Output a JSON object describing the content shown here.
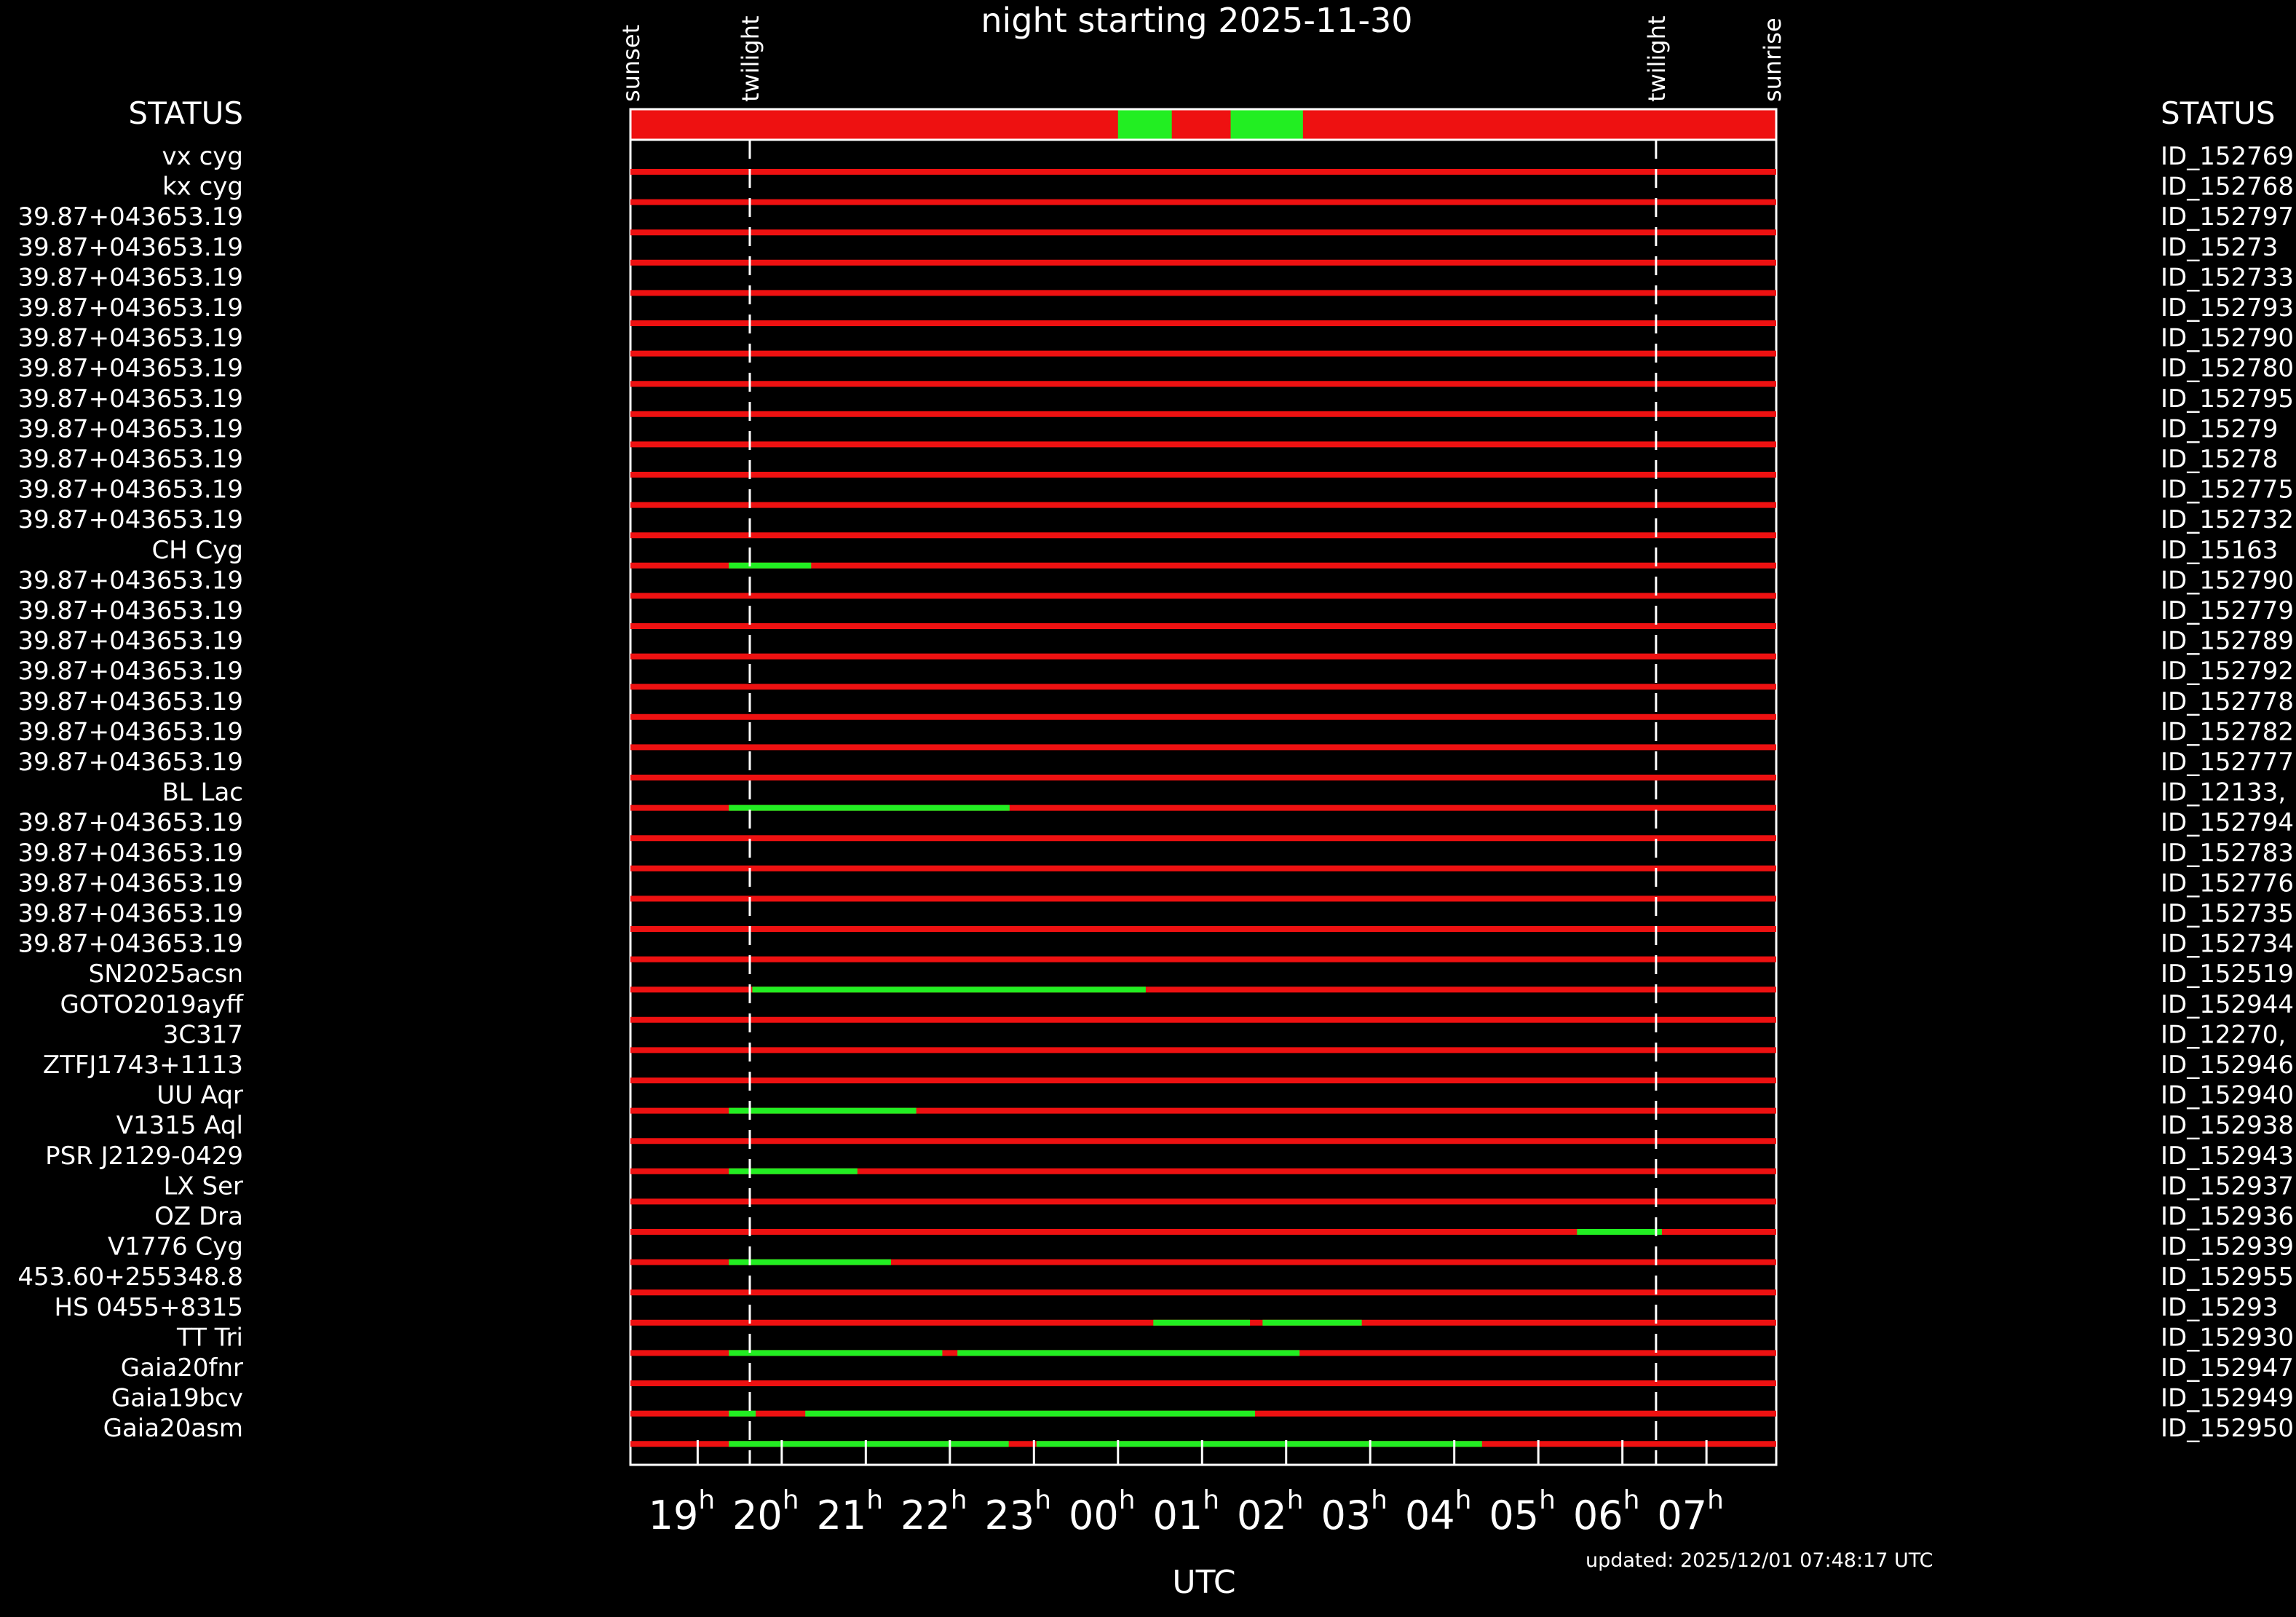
{
  "chart_data": {
    "type": "timeline",
    "title": "night starting 2025-11-30",
    "status_label": "STATUS",
    "xlabel": "UTC",
    "updated": "updated: 2025/12/01 07:48:17 UTC",
    "xlim": [
      18.2,
      31.83
    ],
    "xticks": [
      {
        "value": 19,
        "label": "19"
      },
      {
        "value": 20,
        "label": "20"
      },
      {
        "value": 21,
        "label": "21"
      },
      {
        "value": 22,
        "label": "22"
      },
      {
        "value": 23,
        "label": "23"
      },
      {
        "value": 24,
        "label": "00"
      },
      {
        "value": 25,
        "label": "01"
      },
      {
        "value": 26,
        "label": "02"
      },
      {
        "value": 27,
        "label": "03"
      },
      {
        "value": 28,
        "label": "04"
      },
      {
        "value": 29,
        "label": "05"
      },
      {
        "value": 30,
        "label": "06"
      },
      {
        "value": 31,
        "label": "07"
      }
    ],
    "xtick_suffix": "h",
    "events": [
      {
        "name": "sunset",
        "x": 18.2,
        "line": false
      },
      {
        "name": "twilight",
        "x": 19.62,
        "line": true
      },
      {
        "name": "twilight",
        "x": 30.4,
        "line": true
      },
      {
        "name": "sunrise",
        "x": 31.78,
        "line": false
      }
    ],
    "status_bar_open": [
      [
        24.0,
        24.64
      ],
      [
        25.34,
        26.2
      ]
    ],
    "bad_color": "#ee1111",
    "good_color": "#22ee22",
    "rows": [
      {
        "name": "vx cyg",
        "id": "ID_152769",
        "segments": []
      },
      {
        "name": "kx cyg",
        "id": "ID_152768",
        "segments": []
      },
      {
        "name": "39.87+043653.19",
        "id": "ID_152797",
        "segments": []
      },
      {
        "name": "39.87+043653.19",
        "id": "ID_15273",
        "segments": []
      },
      {
        "name": "39.87+043653.19",
        "id": "ID_152733",
        "segments": []
      },
      {
        "name": "39.87+043653.19",
        "id": "ID_152793",
        "segments": []
      },
      {
        "name": "39.87+043653.19",
        "id": "ID_152790",
        "segments": []
      },
      {
        "name": "39.87+043653.19",
        "id": "ID_152780",
        "segments": []
      },
      {
        "name": "39.87+043653.19",
        "id": "ID_152795",
        "segments": []
      },
      {
        "name": "39.87+043653.19",
        "id": "ID_15279",
        "segments": []
      },
      {
        "name": "39.87+043653.19",
        "id": "ID_15278",
        "segments": []
      },
      {
        "name": "39.87+043653.19",
        "id": "ID_152775",
        "segments": []
      },
      {
        "name": "39.87+043653.19",
        "id": "ID_152732",
        "segments": []
      },
      {
        "name": "CH Cyg",
        "id": "ID_15163",
        "segments": [
          [
            19.37,
            20.35
          ]
        ]
      },
      {
        "name": "39.87+043653.19",
        "id": "ID_152790",
        "segments": []
      },
      {
        "name": "39.87+043653.19",
        "id": "ID_152779",
        "segments": []
      },
      {
        "name": "39.87+043653.19",
        "id": "ID_152789",
        "segments": []
      },
      {
        "name": "39.87+043653.19",
        "id": "ID_152792",
        "segments": []
      },
      {
        "name": "39.87+043653.19",
        "id": "ID_152778",
        "segments": []
      },
      {
        "name": "39.87+043653.19",
        "id": "ID_152782",
        "segments": []
      },
      {
        "name": "39.87+043653.19",
        "id": "ID_152777",
        "segments": []
      },
      {
        "name": "BL Lac",
        "id": "ID_12133,",
        "segments": [
          [
            19.37,
            22.71
          ]
        ]
      },
      {
        "name": "39.87+043653.19",
        "id": "ID_152794",
        "segments": []
      },
      {
        "name": "39.87+043653.19",
        "id": "ID_152783",
        "segments": []
      },
      {
        "name": "39.87+043653.19",
        "id": "ID_152776",
        "segments": []
      },
      {
        "name": "39.87+043653.19",
        "id": "ID_152735",
        "segments": []
      },
      {
        "name": "39.87+043653.19",
        "id": "ID_152734",
        "segments": []
      },
      {
        "name": "SN2025acsn",
        "id": "ID_152519",
        "segments": [
          [
            19.65,
            24.33
          ]
        ]
      },
      {
        "name": "GOTO2019ayff",
        "id": "ID_152944",
        "segments": []
      },
      {
        "name": "3C317",
        "id": "ID_12270,",
        "segments": []
      },
      {
        "name": "ZTFJ1743+1113",
        "id": "ID_152946",
        "segments": []
      },
      {
        "name": "UU Aqr",
        "id": "ID_152940",
        "segments": [
          [
            19.37,
            21.6
          ]
        ]
      },
      {
        "name": "V1315 Aql",
        "id": "ID_152938",
        "segments": []
      },
      {
        "name": "PSR J2129-0429",
        "id": "ID_152943",
        "segments": [
          [
            19.37,
            20.9
          ]
        ]
      },
      {
        "name": "LX Ser",
        "id": "ID_152937",
        "segments": []
      },
      {
        "name": "OZ Dra",
        "id": "ID_152936",
        "segments": [
          [
            29.46,
            30.47
          ]
        ]
      },
      {
        "name": "V1776 Cyg",
        "id": "ID_152939",
        "segments": [
          [
            19.37,
            21.3
          ]
        ]
      },
      {
        "name": "453.60+255348.8",
        "id": "ID_152955",
        "segments": []
      },
      {
        "name": "HS 0455+8315",
        "id": "ID_15293",
        "segments": [
          [
            24.42,
            25.57
          ],
          [
            25.72,
            26.9
          ]
        ]
      },
      {
        "name": "TT Tri",
        "id": "ID_152930",
        "segments": [
          [
            19.37,
            21.91
          ],
          [
            22.09,
            26.16
          ]
        ]
      },
      {
        "name": "Gaia20fnr",
        "id": "ID_152947",
        "segments": []
      },
      {
        "name": "Gaia19bcv",
        "id": "ID_152949",
        "segments": [
          [
            19.37,
            19.69
          ],
          [
            20.28,
            25.63
          ]
        ]
      },
      {
        "name": "Gaia20asm",
        "id": "ID_152950",
        "segments": [
          [
            19.37,
            22.7
          ],
          [
            23.03,
            28.33
          ]
        ]
      }
    ]
  }
}
